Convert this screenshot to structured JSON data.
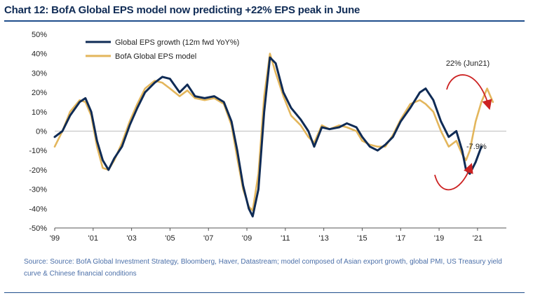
{
  "title": "Chart 12: BofA Global EPS model now predicting +22% EPS peak in June",
  "source": "Source:  Source:  BofA Global Investment Strategy, Bloomberg, Haver, Datastream; model composed  of Asian export growth, global PMI, US Treasury yield curve & Chinese  financial conditions",
  "colors": {
    "navy": "#0f2b55",
    "gold": "#e3b65c",
    "red": "#cc2222",
    "title_rule": "#1f4e8c"
  },
  "chart_data": {
    "type": "line",
    "title": "Chart 12: BofA Global EPS model now predicting +22% EPS peak in June",
    "xlabel": "",
    "ylabel": "",
    "xlim": [
      1999.0,
      2022.5
    ],
    "ylim": [
      -50,
      50
    ],
    "yticks": [
      50,
      40,
      30,
      20,
      10,
      0,
      -10,
      -20,
      -30,
      -40,
      -50
    ],
    "ytick_labels": [
      "50%",
      "40%",
      "30%",
      "20%",
      "10%",
      "0%",
      "-10%",
      "-20%",
      "-30%",
      "-40%",
      "-50%"
    ],
    "xticks": [
      1999,
      2001,
      2003,
      2005,
      2007,
      2009,
      2011,
      2013,
      2015,
      2017,
      2019,
      2021
    ],
    "xtick_labels": [
      "'99",
      "'01",
      "'03",
      "'05",
      "'07",
      "'09",
      "'11",
      "'13",
      "'15",
      "'17",
      "'19",
      "'21"
    ],
    "legend_position": "top-left",
    "series": [
      {
        "name": "Global EPS growth (12m fwd YoY%)",
        "color": "#0f2b55",
        "points": [
          [
            1999.0,
            -3
          ],
          [
            1999.4,
            0
          ],
          [
            1999.8,
            8
          ],
          [
            2000.3,
            15
          ],
          [
            2000.6,
            17
          ],
          [
            2000.9,
            10
          ],
          [
            2001.2,
            -5
          ],
          [
            2001.5,
            -15
          ],
          [
            2001.8,
            -20
          ],
          [
            2002.1,
            -14
          ],
          [
            2002.5,
            -8
          ],
          [
            2002.9,
            3
          ],
          [
            2003.3,
            12
          ],
          [
            2003.7,
            20
          ],
          [
            2004.2,
            25
          ],
          [
            2004.6,
            28
          ],
          [
            2005.0,
            27
          ],
          [
            2005.5,
            20
          ],
          [
            2005.9,
            24
          ],
          [
            2006.3,
            18
          ],
          [
            2006.8,
            17
          ],
          [
            2007.3,
            18
          ],
          [
            2007.8,
            15
          ],
          [
            2008.2,
            5
          ],
          [
            2008.5,
            -10
          ],
          [
            2008.8,
            -28
          ],
          [
            2009.1,
            -40
          ],
          [
            2009.3,
            -44
          ],
          [
            2009.6,
            -30
          ],
          [
            2009.9,
            10
          ],
          [
            2010.2,
            38
          ],
          [
            2010.5,
            35
          ],
          [
            2010.9,
            20
          ],
          [
            2011.3,
            12
          ],
          [
            2011.8,
            6
          ],
          [
            2012.2,
            0
          ],
          [
            2012.5,
            -8
          ],
          [
            2012.9,
            2
          ],
          [
            2013.3,
            1
          ],
          [
            2013.8,
            2
          ],
          [
            2014.2,
            4
          ],
          [
            2014.7,
            2
          ],
          [
            2015.0,
            -3
          ],
          [
            2015.4,
            -8
          ],
          [
            2015.8,
            -10
          ],
          [
            2016.2,
            -7
          ],
          [
            2016.6,
            -3
          ],
          [
            2017.0,
            5
          ],
          [
            2017.5,
            12
          ],
          [
            2018.0,
            20
          ],
          [
            2018.3,
            22
          ],
          [
            2018.7,
            16
          ],
          [
            2019.1,
            5
          ],
          [
            2019.5,
            -3
          ],
          [
            2019.9,
            0
          ],
          [
            2020.2,
            -10
          ],
          [
            2020.4,
            -20
          ],
          [
            2020.6,
            -22
          ],
          [
            2020.9,
            -16
          ],
          [
            2021.2,
            -8
          ]
        ]
      },
      {
        "name": "BofA Global EPS model",
        "color": "#e3b65c",
        "points": [
          [
            1999.0,
            -8
          ],
          [
            1999.4,
            0
          ],
          [
            1999.8,
            10
          ],
          [
            2000.3,
            16
          ],
          [
            2000.6,
            15
          ],
          [
            2000.9,
            8
          ],
          [
            2001.2,
            -8
          ],
          [
            2001.5,
            -19
          ],
          [
            2001.8,
            -20
          ],
          [
            2002.1,
            -15
          ],
          [
            2002.5,
            -6
          ],
          [
            2002.9,
            5
          ],
          [
            2003.3,
            14
          ],
          [
            2003.7,
            22
          ],
          [
            2004.2,
            26
          ],
          [
            2004.6,
            25
          ],
          [
            2005.0,
            22
          ],
          [
            2005.5,
            18
          ],
          [
            2005.9,
            21
          ],
          [
            2006.3,
            17
          ],
          [
            2006.8,
            16
          ],
          [
            2007.3,
            17
          ],
          [
            2007.8,
            14
          ],
          [
            2008.2,
            3
          ],
          [
            2008.5,
            -14
          ],
          [
            2008.8,
            -30
          ],
          [
            2009.1,
            -39
          ],
          [
            2009.3,
            -41
          ],
          [
            2009.6,
            -22
          ],
          [
            2009.9,
            18
          ],
          [
            2010.2,
            40
          ],
          [
            2010.5,
            30
          ],
          [
            2010.9,
            18
          ],
          [
            2011.3,
            8
          ],
          [
            2011.8,
            3
          ],
          [
            2012.2,
            -3
          ],
          [
            2012.5,
            -6
          ],
          [
            2012.9,
            3
          ],
          [
            2013.3,
            1
          ],
          [
            2013.8,
            3
          ],
          [
            2014.2,
            2
          ],
          [
            2014.7,
            0
          ],
          [
            2015.0,
            -5
          ],
          [
            2015.4,
            -7
          ],
          [
            2015.8,
            -8
          ],
          [
            2016.2,
            -8
          ],
          [
            2016.6,
            -2
          ],
          [
            2017.0,
            6
          ],
          [
            2017.5,
            14
          ],
          [
            2018.0,
            16
          ],
          [
            2018.3,
            14
          ],
          [
            2018.7,
            10
          ],
          [
            2019.1,
            0
          ],
          [
            2019.5,
            -8
          ],
          [
            2019.9,
            -5
          ],
          [
            2020.2,
            -12
          ],
          [
            2020.4,
            -15
          ],
          [
            2020.6,
            -10
          ],
          [
            2020.9,
            5
          ],
          [
            2021.2,
            15
          ],
          [
            2021.5,
            22
          ],
          [
            2021.8,
            15
          ]
        ]
      }
    ],
    "annotations": [
      {
        "text": "22% (Jun21)",
        "x": 2021.5,
        "y": 22
      },
      {
        "text": "-7.9%",
        "x": 2021.2,
        "y": -7.9
      }
    ]
  }
}
